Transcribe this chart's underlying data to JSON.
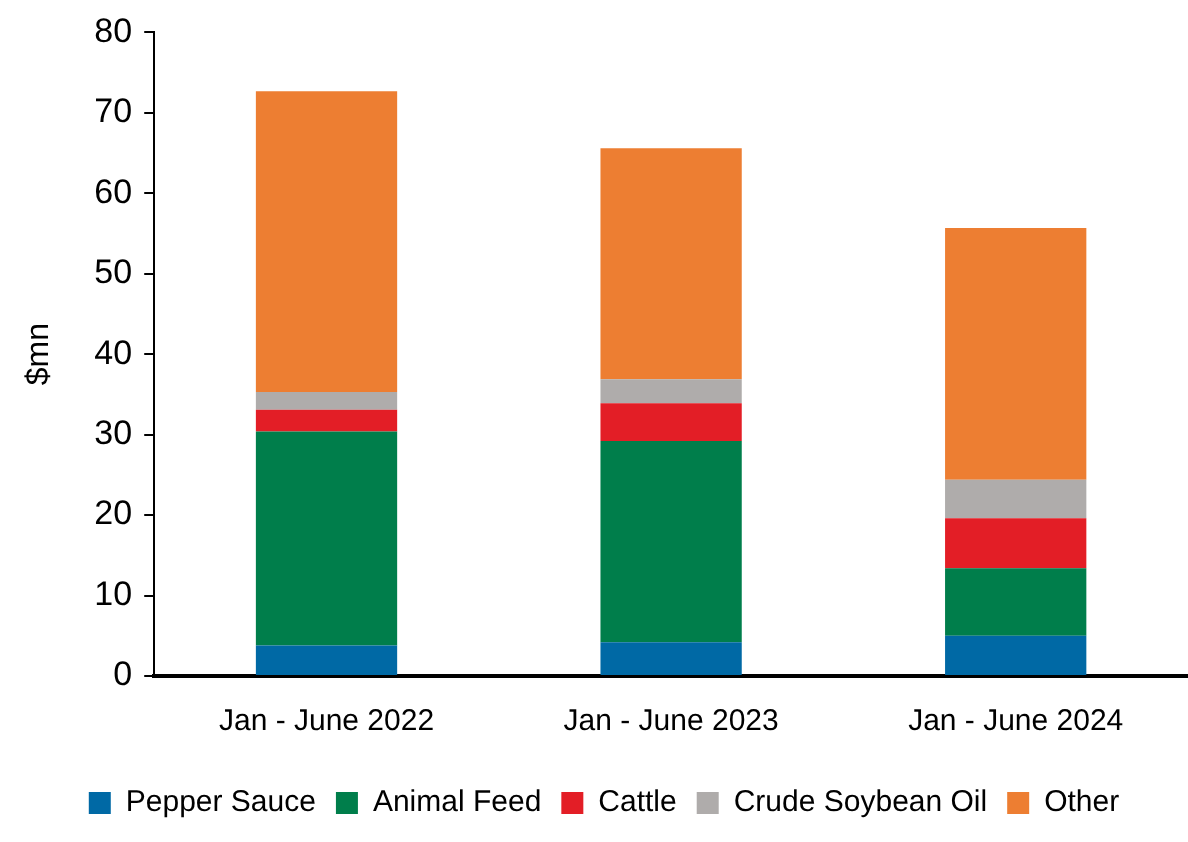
{
  "chart_data": {
    "type": "bar",
    "stacked": true,
    "categories": [
      "Jan - June 2022",
      "Jan - June 2023",
      "Jan - June 2024"
    ],
    "series": [
      {
        "name": "Pepper Sauce",
        "color": "#0069a5",
        "values": [
          3.8,
          4.2,
          5.0
        ]
      },
      {
        "name": "Animal Feed",
        "color": "#007e4b",
        "values": [
          26.6,
          25.0,
          8.4
        ]
      },
      {
        "name": "Cattle",
        "color": "#e31e26",
        "values": [
          2.7,
          4.7,
          6.2
        ]
      },
      {
        "name": "Crude Soybean Oil",
        "color": "#afacab",
        "values": [
          2.2,
          3.0,
          4.8
        ]
      },
      {
        "name": "Other",
        "color": "#ed7e32",
        "values": [
          37.4,
          28.7,
          31.3
        ]
      }
    ],
    "ylabel": "$mn",
    "ylim": [
      0,
      80
    ],
    "yticks": [
      0,
      10,
      20,
      30,
      40,
      50,
      60,
      70,
      80
    ],
    "legend": "bottom"
  }
}
